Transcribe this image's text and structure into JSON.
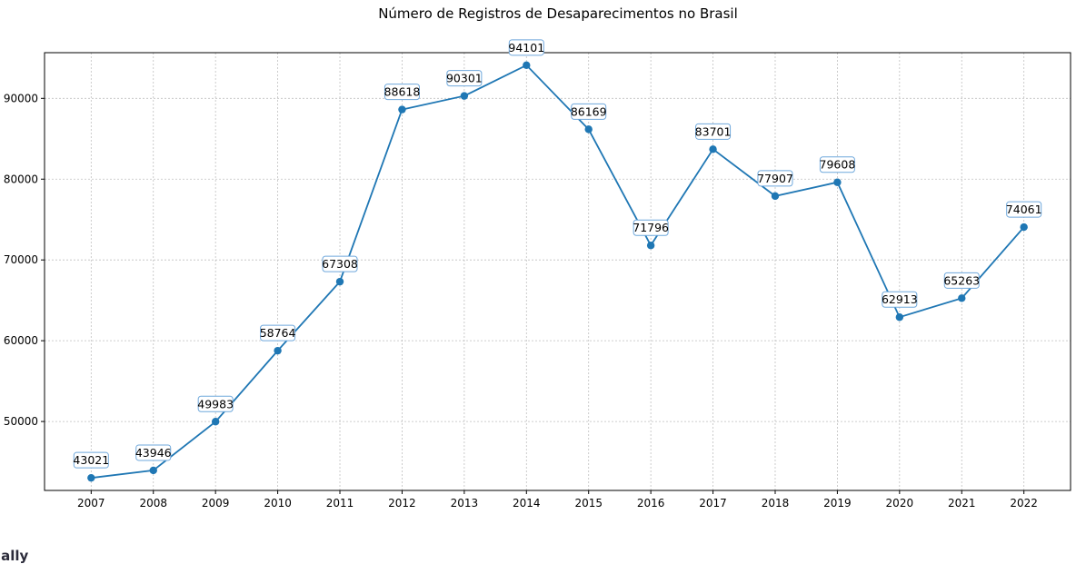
{
  "chart_data": {
    "type": "line",
    "title": "Número de Registros de Desaparecimentos no Brasil",
    "xlabel": "",
    "ylabel": "",
    "x": [
      2007,
      2008,
      2009,
      2010,
      2011,
      2012,
      2013,
      2014,
      2015,
      2016,
      2017,
      2018,
      2019,
      2020,
      2021,
      2022
    ],
    "x_tick_labels": [
      "2007",
      "2008",
      "2009",
      "2010",
      "2011",
      "2012",
      "2013",
      "2014",
      "2015",
      "2016",
      "2017",
      "2018",
      "2019",
      "2020",
      "2021",
      "2022"
    ],
    "series": [
      {
        "values": [
          43021,
          43946,
          49983,
          58764,
          67308,
          88618,
          90301,
          94101,
          86169,
          71796,
          83701,
          77907,
          79608,
          62913,
          65263,
          74061
        ],
        "color": "#1f77b4",
        "marker": "circle"
      }
    ],
    "data_labels": [
      "43021",
      "43946",
      "49983",
      "58764",
      "67308",
      "88618",
      "90301",
      "94101",
      "86169",
      "71796",
      "83701",
      "77907",
      "79608",
      "62913",
      "65263",
      "74061"
    ],
    "y_ticks": [
      50000,
      60000,
      70000,
      80000,
      90000
    ],
    "y_tick_labels": [
      "50000",
      "60000",
      "70000",
      "80000",
      "90000"
    ],
    "xlim": [
      2006.25,
      2022.75
    ],
    "ylim": [
      41467,
      95655
    ],
    "grid": true,
    "label_box_color": "#6fa8dc"
  },
  "cut_off_text": "ially"
}
